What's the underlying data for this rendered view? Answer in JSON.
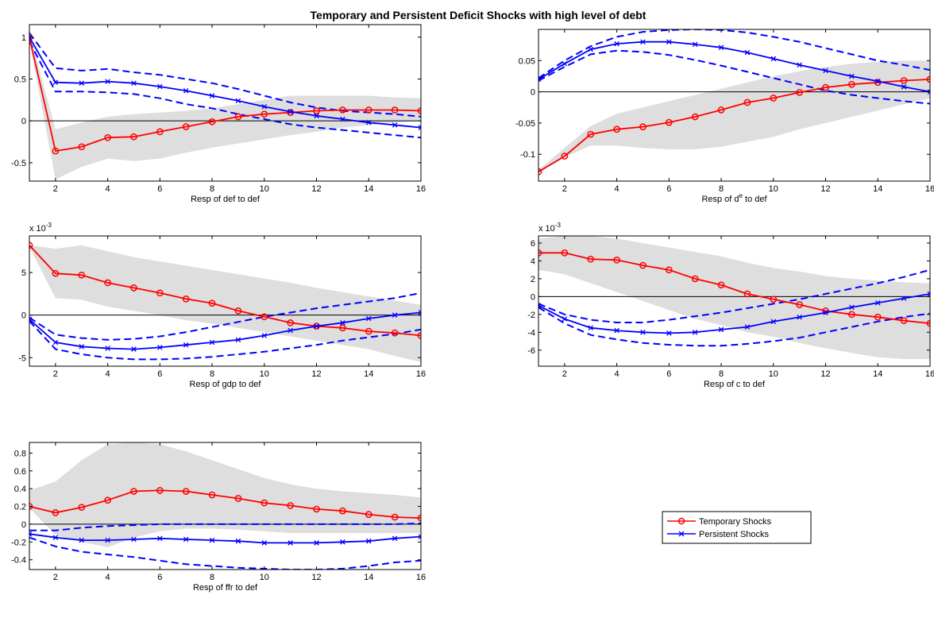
{
  "figure": {
    "title": "Temporary and Persistent Deficit Shocks with high level of debt"
  },
  "legend": {
    "items": [
      {
        "label": "Temporary Shocks",
        "color": "#ff0000",
        "marker": "circle"
      },
      {
        "label": "Persistent Shocks",
        "color": "#0000ff",
        "marker": "x"
      }
    ]
  },
  "chart_data": [
    {
      "type": "line",
      "xlabel": "Resp of def to def",
      "xlim": [
        1,
        16
      ],
      "ylim": [
        -0.72,
        1.15
      ],
      "xticks": [
        2,
        4,
        6,
        8,
        10,
        12,
        14,
        16
      ],
      "yticks": [
        -0.5,
        0,
        0.5,
        1
      ],
      "ytick_labels": [
        "-0.5",
        "0",
        "0.5",
        "1"
      ],
      "x": [
        1,
        2,
        3,
        4,
        5,
        6,
        7,
        8,
        9,
        10,
        11,
        12,
        13,
        14,
        15,
        16
      ],
      "band": {
        "lower": [
          0.95,
          -0.7,
          -0.55,
          -0.45,
          -0.48,
          -0.45,
          -0.38,
          -0.32,
          -0.27,
          -0.22,
          -0.17,
          -0.13,
          -0.08,
          -0.05,
          -0.02,
          0.0
        ],
        "upper": [
          1.05,
          -0.1,
          -0.02,
          0.05,
          0.08,
          0.1,
          0.12,
          0.15,
          0.2,
          0.25,
          0.3,
          0.3,
          0.3,
          0.3,
          0.28,
          0.27
        ]
      },
      "series": [
        {
          "name": "Temporary Shocks",
          "values": [
            1.0,
            -0.36,
            -0.31,
            -0.2,
            -0.19,
            -0.13,
            -0.07,
            -0.01,
            0.05,
            0.08,
            0.1,
            0.12,
            0.13,
            0.13,
            0.13,
            0.12
          ]
        },
        {
          "name": "Persistent Shocks",
          "values": [
            1.0,
            0.46,
            0.45,
            0.47,
            0.45,
            0.41,
            0.36,
            0.3,
            0.24,
            0.17,
            0.11,
            0.06,
            0.02,
            -0.02,
            -0.05,
            -0.08
          ]
        }
      ],
      "bounds": [
        [
          1.05,
          0.63,
          0.6,
          0.62,
          0.58,
          0.55,
          0.5,
          0.45,
          0.38,
          0.3,
          0.22,
          0.16,
          0.12,
          0.1,
          0.08,
          0.05
        ],
        [
          0.95,
          0.35,
          0.35,
          0.34,
          0.32,
          0.27,
          0.2,
          0.15,
          0.08,
          0.02,
          -0.04,
          -0.08,
          -0.11,
          -0.14,
          -0.17,
          -0.2
        ]
      ]
    },
    {
      "type": "line",
      "xlabel": "Resp of d^e to def",
      "xlim": [
        1,
        16
      ],
      "ylim": [
        -0.143,
        0.1
      ],
      "xticks": [
        2,
        4,
        6,
        8,
        10,
        12,
        14,
        16
      ],
      "yticks": [
        -0.1,
        -0.05,
        0,
        0.05
      ],
      "ytick_labels": [
        "-0.1",
        "-0.05",
        "0",
        "0.05"
      ],
      "x": [
        1,
        2,
        3,
        4,
        5,
        6,
        7,
        8,
        9,
        10,
        11,
        12,
        13,
        14,
        15,
        16
      ],
      "band": {
        "lower": [
          -0.13,
          -0.105,
          -0.086,
          -0.086,
          -0.09,
          -0.092,
          -0.092,
          -0.088,
          -0.08,
          -0.072,
          -0.06,
          -0.05,
          -0.04,
          -0.03,
          -0.02,
          -0.01
        ],
        "upper": [
          -0.125,
          -0.09,
          -0.055,
          -0.035,
          -0.025,
          -0.015,
          -0.005,
          0.005,
          0.015,
          0.025,
          0.033,
          0.04,
          0.045,
          0.048,
          0.05,
          0.05
        ]
      },
      "series": [
        {
          "name": "Temporary Shocks",
          "values": [
            -0.128,
            -0.103,
            -0.068,
            -0.06,
            -0.056,
            -0.049,
            -0.04,
            -0.029,
            -0.017,
            -0.01,
            -0.001,
            0.007,
            0.012,
            0.015,
            0.018,
            0.02
          ]
        },
        {
          "name": "Persistent Shocks",
          "values": [
            0.02,
            0.045,
            0.068,
            0.077,
            0.08,
            0.08,
            0.076,
            0.071,
            0.063,
            0.053,
            0.043,
            0.034,
            0.025,
            0.017,
            0.008,
            0.0
          ]
        }
      ],
      "bounds": [
        [
          0.022,
          0.05,
          0.073,
          0.088,
          0.096,
          0.099,
          0.1,
          0.099,
          0.095,
          0.088,
          0.08,
          0.07,
          0.06,
          0.05,
          0.043,
          0.035
        ],
        [
          0.018,
          0.04,
          0.06,
          0.066,
          0.064,
          0.059,
          0.051,
          0.042,
          0.032,
          0.022,
          0.012,
          0.002,
          -0.005,
          -0.01,
          -0.015,
          -0.019
        ]
      ]
    },
    {
      "type": "line",
      "xlabel": "Resp of gdp to def",
      "exponent_label": "x 10",
      "exponent_power": "-3",
      "xlim": [
        1,
        16
      ],
      "ylim": [
        -6.0,
        9.3
      ],
      "xticks": [
        2,
        4,
        6,
        8,
        10,
        12,
        14,
        16
      ],
      "yticks": [
        -5,
        0,
        5
      ],
      "ytick_labels": [
        "-5",
        "0",
        "5"
      ],
      "x": [
        1,
        2,
        3,
        4,
        5,
        6,
        7,
        8,
        9,
        10,
        11,
        12,
        13,
        14,
        15,
        16
      ],
      "band": {
        "lower": [
          8.0,
          2.0,
          1.8,
          1.0,
          0.5,
          0.0,
          -0.6,
          -1.0,
          -1.5,
          -2.0,
          -2.5,
          -3.0,
          -3.5,
          -4.0,
          -4.8,
          -5.5
        ],
        "upper": [
          8.2,
          7.8,
          8.2,
          7.5,
          6.8,
          6.3,
          5.8,
          5.3,
          4.8,
          4.3,
          3.8,
          3.2,
          2.7,
          2.2,
          1.7,
          1.2
        ]
      },
      "series": [
        {
          "name": "Temporary Shocks",
          "values": [
            8.2,
            4.9,
            4.7,
            3.8,
            3.2,
            2.6,
            1.9,
            1.4,
            0.5,
            -0.2,
            -0.9,
            -1.3,
            -1.5,
            -1.9,
            -2.1,
            -2.4
          ]
        },
        {
          "name": "Persistent Shocks",
          "values": [
            -0.5,
            -3.2,
            -3.7,
            -3.9,
            -4.0,
            -3.8,
            -3.5,
            -3.2,
            -2.9,
            -2.4,
            -1.8,
            -1.3,
            -0.9,
            -0.4,
            0.0,
            0.3
          ]
        }
      ],
      "bounds": [
        [
          -0.3,
          -2.3,
          -2.7,
          -2.9,
          -2.8,
          -2.5,
          -2.0,
          -1.4,
          -0.8,
          -0.2,
          0.3,
          0.8,
          1.2,
          1.6,
          2.0,
          2.6
        ],
        [
          -0.7,
          -4.0,
          -4.6,
          -5.0,
          -5.2,
          -5.2,
          -5.1,
          -4.9,
          -4.6,
          -4.3,
          -3.9,
          -3.5,
          -3.0,
          -2.6,
          -2.2,
          -1.7
        ]
      ]
    },
    {
      "type": "line",
      "xlabel": "Resp of c to def",
      "exponent_label": "x 10",
      "exponent_power": "-3",
      "xlim": [
        1,
        16
      ],
      "ylim": [
        -7.8,
        6.8
      ],
      "xticks": [
        2,
        4,
        6,
        8,
        10,
        12,
        14,
        16
      ],
      "yticks": [
        -6,
        -4,
        -2,
        0,
        2,
        4,
        6
      ],
      "ytick_labels": [
        "-6",
        "-4",
        "-2",
        "0",
        "2",
        "4",
        "6"
      ],
      "x": [
        1,
        2,
        3,
        4,
        5,
        6,
        7,
        8,
        9,
        10,
        11,
        12,
        13,
        14,
        15,
        16
      ],
      "band": {
        "lower": [
          3.0,
          2.5,
          1.5,
          0.5,
          -0.5,
          -1.5,
          -2.5,
          -3.2,
          -4.0,
          -4.5,
          -5.2,
          -5.8,
          -6.3,
          -6.8,
          -7.0,
          -7.0
        ],
        "upper": [
          6.5,
          6.8,
          6.8,
          6.5,
          6.0,
          5.5,
          5.0,
          4.5,
          3.8,
          3.2,
          2.8,
          2.3,
          2.0,
          1.8,
          1.6,
          1.5
        ]
      },
      "series": [
        {
          "name": "Temporary Shocks",
          "values": [
            4.9,
            4.9,
            4.2,
            4.1,
            3.5,
            3.0,
            2.0,
            1.3,
            0.3,
            -0.3,
            -0.9,
            -1.6,
            -2.0,
            -2.3,
            -2.7,
            -3.0
          ]
        },
        {
          "name": "Persistent Shocks",
          "values": [
            -1.0,
            -2.5,
            -3.5,
            -3.8,
            -4.0,
            -4.1,
            -4.0,
            -3.7,
            -3.4,
            -2.8,
            -2.3,
            -1.8,
            -1.2,
            -0.7,
            -0.2,
            0.3
          ]
        }
      ],
      "bounds": [
        [
          -0.8,
          -2.0,
          -2.6,
          -2.9,
          -2.9,
          -2.6,
          -2.2,
          -1.8,
          -1.3,
          -0.8,
          -0.3,
          0.3,
          0.9,
          1.5,
          2.2,
          3.0
        ],
        [
          -1.2,
          -3.0,
          -4.3,
          -4.8,
          -5.2,
          -5.4,
          -5.5,
          -5.5,
          -5.3,
          -5.0,
          -4.6,
          -4.0,
          -3.4,
          -2.8,
          -2.3,
          -1.9
        ]
      ]
    },
    {
      "type": "line",
      "xlabel": "Resp of ffr to def",
      "xlim": [
        1,
        16
      ],
      "ylim": [
        -0.51,
        0.92
      ],
      "xticks": [
        2,
        4,
        6,
        8,
        10,
        12,
        14,
        16
      ],
      "yticks": [
        -0.4,
        -0.2,
        0,
        0.2,
        0.4,
        0.6,
        0.8
      ],
      "ytick_labels": [
        "-0.4",
        "-0.2",
        "0",
        "0.2",
        "0.4",
        "0.6",
        "0.8"
      ],
      "x": [
        1,
        2,
        3,
        4,
        5,
        6,
        7,
        8,
        9,
        10,
        11,
        12,
        13,
        14,
        15,
        16
      ],
      "band": {
        "lower": [
          0.18,
          -0.12,
          -0.2,
          -0.26,
          -0.15,
          -0.08,
          -0.05,
          -0.05,
          -0.06,
          -0.08,
          -0.1,
          -0.1,
          -0.1,
          -0.1,
          -0.1,
          -0.1
        ],
        "upper": [
          0.38,
          0.48,
          0.72,
          0.9,
          0.92,
          0.9,
          0.82,
          0.72,
          0.62,
          0.52,
          0.45,
          0.4,
          0.37,
          0.35,
          0.33,
          0.3
        ]
      },
      "series": [
        {
          "name": "Temporary Shocks",
          "values": [
            0.2,
            0.13,
            0.19,
            0.27,
            0.37,
            0.38,
            0.37,
            0.33,
            0.29,
            0.24,
            0.21,
            0.17,
            0.15,
            0.11,
            0.08,
            0.07
          ]
        },
        {
          "name": "Persistent Shocks",
          "values": [
            -0.11,
            -0.15,
            -0.18,
            -0.18,
            -0.17,
            -0.16,
            -0.17,
            -0.18,
            -0.19,
            -0.21,
            -0.21,
            -0.21,
            -0.2,
            -0.19,
            -0.16,
            -0.14
          ]
        }
      ],
      "bounds": [
        [
          -0.07,
          -0.07,
          -0.04,
          -0.02,
          -0.01,
          0.0,
          0.0,
          0.0,
          0.0,
          0.0,
          0.0,
          0.0,
          0.0,
          0.0,
          0.0,
          0.01
        ],
        [
          -0.15,
          -0.25,
          -0.31,
          -0.34,
          -0.37,
          -0.41,
          -0.45,
          -0.47,
          -0.49,
          -0.5,
          -0.51,
          -0.51,
          -0.5,
          -0.47,
          -0.43,
          -0.41
        ]
      ]
    }
  ]
}
